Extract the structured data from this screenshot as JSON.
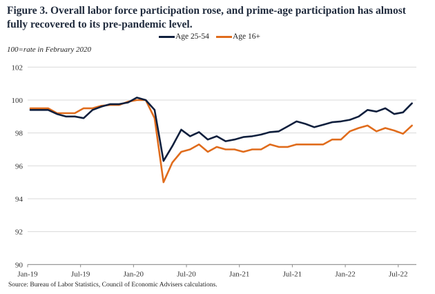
{
  "chart_data": {
    "type": "line",
    "title": "Figure 3. Overall labor force participation rose, and prime-age participation has almost fully recovered to its pre-pandemic level.",
    "subtitle": "100=rate in February 2020",
    "source": "Source: Bureau of Labor Statistics, Council of Economic Advisers calculations.",
    "xlabel": "",
    "ylabel": "",
    "ylim": [
      90,
      102
    ],
    "yticks": [
      "90",
      "92",
      "94",
      "96",
      "98",
      "100",
      "102"
    ],
    "ytick_values": [
      90,
      92,
      94,
      96,
      98,
      100,
      102
    ],
    "xticks": [
      "Jan-19",
      "Jul-19",
      "Jan-20",
      "Jul-20",
      "Jan-21",
      "Jul-21",
      "Jan-22",
      "Jul-22"
    ],
    "grid": "horizontal",
    "legend_position": "top-center",
    "x": [
      "Jan-19",
      "Feb-19",
      "Mar-19",
      "Apr-19",
      "May-19",
      "Jun-19",
      "Jul-19",
      "Aug-19",
      "Sep-19",
      "Oct-19",
      "Nov-19",
      "Dec-19",
      "Jan-20",
      "Feb-20",
      "Mar-20",
      "Apr-20",
      "May-20",
      "Jun-20",
      "Jul-20",
      "Aug-20",
      "Sep-20",
      "Oct-20",
      "Nov-20",
      "Dec-20",
      "Jan-21",
      "Feb-21",
      "Mar-21",
      "Apr-21",
      "May-21",
      "Jun-21",
      "Jul-21",
      "Aug-21",
      "Sep-21",
      "Oct-21",
      "Nov-21",
      "Dec-21",
      "Jan-22",
      "Feb-22",
      "Mar-22",
      "Apr-22",
      "May-22",
      "Jun-22",
      "Jul-22",
      "Aug-22"
    ],
    "series": [
      {
        "name": "Age 25-54",
        "color": "#0f1f3d",
        "values": [
          99.4,
          99.4,
          99.4,
          99.15,
          99.0,
          99.0,
          98.9,
          99.4,
          99.6,
          99.75,
          99.75,
          99.85,
          100.15,
          100.0,
          99.4,
          96.3,
          97.2,
          98.2,
          97.8,
          98.05,
          97.6,
          97.8,
          97.5,
          97.6,
          97.75,
          97.8,
          97.9,
          98.05,
          98.1,
          98.4,
          98.7,
          98.55,
          98.35,
          98.5,
          98.65,
          98.7,
          98.8,
          99.0,
          99.4,
          99.3,
          99.5,
          99.15,
          99.25,
          99.8
        ]
      },
      {
        "name": "Age 16+",
        "color": "#e06c1c",
        "values": [
          99.5,
          99.5,
          99.5,
          99.2,
          99.2,
          99.2,
          99.5,
          99.5,
          99.65,
          99.7,
          99.7,
          99.9,
          100.0,
          100.0,
          98.9,
          95.0,
          96.2,
          96.85,
          97.0,
          97.3,
          96.85,
          97.15,
          97.0,
          97.0,
          96.85,
          97.0,
          97.0,
          97.3,
          97.15,
          97.15,
          97.3,
          97.3,
          97.3,
          97.3,
          97.6,
          97.6,
          98.1,
          98.3,
          98.45,
          98.1,
          98.3,
          98.15,
          97.95,
          98.45
        ]
      }
    ]
  }
}
